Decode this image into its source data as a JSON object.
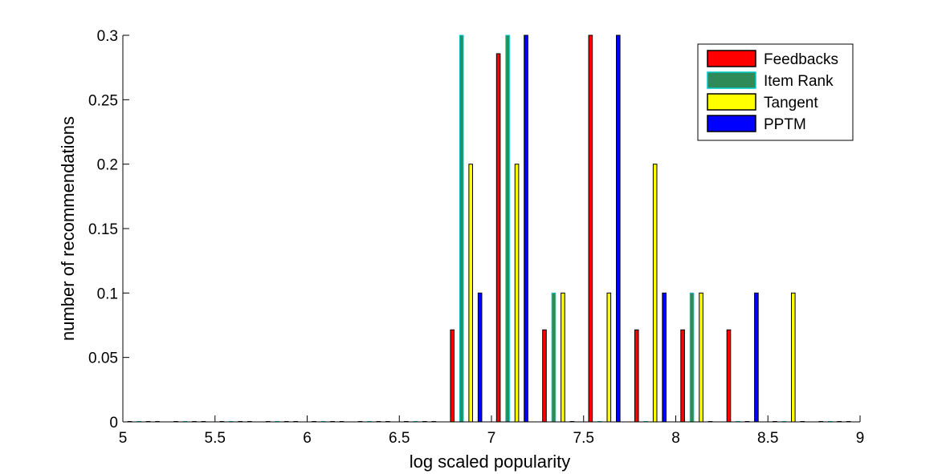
{
  "chart_data": {
    "type": "bar",
    "xlabel": "log scaled popularity",
    "ylabel": "number of recommendations",
    "xlim": [
      5,
      9
    ],
    "ylim": [
      0,
      0.3
    ],
    "xticks": [
      "5",
      "5.5",
      "6",
      "6.5",
      "7",
      "7.5",
      "8",
      "8.5",
      "9"
    ],
    "yticks": [
      "0",
      "0.05",
      "0.1",
      "0.15",
      "0.2",
      "0.25",
      "0.3"
    ],
    "grid": false,
    "legend_position": "top-right",
    "bin_centers": [
      5.125,
      5.375,
      5.625,
      5.875,
      6.125,
      6.375,
      6.625,
      6.875,
      7.125,
      7.375,
      7.625,
      7.875,
      8.125,
      8.375,
      8.625,
      8.875
    ],
    "series": [
      {
        "name": "Feedbacks",
        "color": "#ff0000",
        "values": [
          0,
          0,
          0,
          0,
          0,
          0,
          0,
          0.0714,
          0.2857,
          0.0714,
          0.3,
          0.0714,
          0.0714,
          0.0714,
          0,
          0
        ]
      },
      {
        "name": "Item Rank",
        "color": "#2e8b57",
        "edge": "#00c8c8",
        "values": [
          0,
          0,
          0,
          0,
          0,
          0,
          0,
          0.3,
          0.3,
          0.1,
          0,
          0,
          0.1,
          0,
          0,
          0
        ]
      },
      {
        "name": "Tangent",
        "color": "#ffff00",
        "values": [
          0,
          0,
          0,
          0,
          0,
          0,
          0,
          0.2,
          0.2,
          0.1,
          0.1,
          0.2,
          0.1,
          0,
          0.1,
          0
        ]
      },
      {
        "name": "PPTM",
        "color": "#0000ff",
        "values": [
          0,
          0,
          0,
          0,
          0,
          0,
          0,
          0.1,
          0.3,
          0,
          0.3,
          0.1,
          0,
          0.1,
          0,
          0
        ]
      }
    ]
  }
}
